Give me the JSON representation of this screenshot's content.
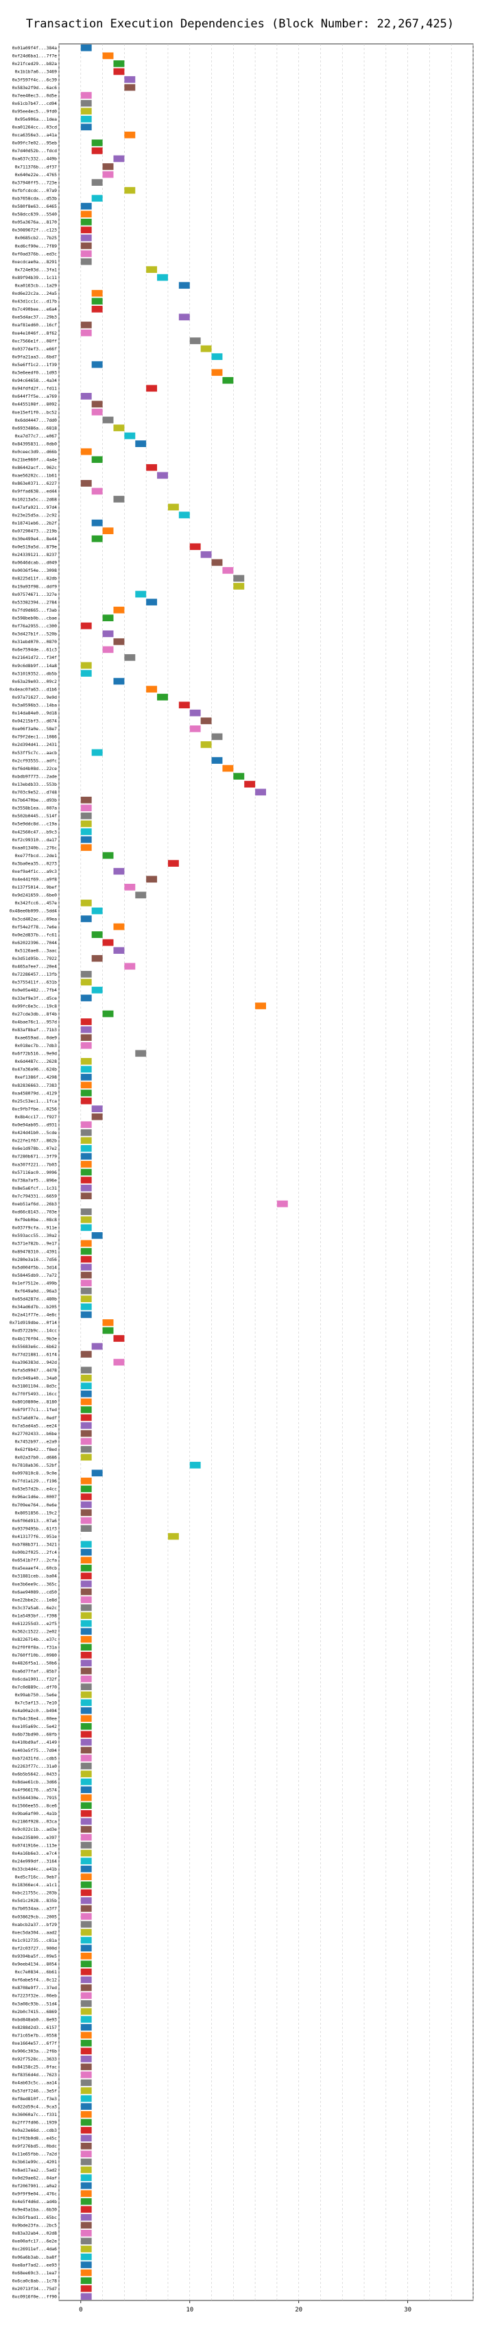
{
  "chart_data": {
    "type": "gantt",
    "title": "Transaction Execution Dependencies (Block Number: 22,267,425)",
    "xlabel": "",
    "ylabel": "",
    "xlim": [
      -2,
      36
    ],
    "x_ticks": [
      0,
      10,
      20,
      30
    ],
    "grid": true,
    "categories": [
      "0x01a09f4f...384a",
      "0xf24d6ba1...7f7e",
      "0x21fced29...b82a",
      "0x1b1b7a6...3469",
      "0x3f597f4c...6c39",
      "0x583e2f9d...6ac6",
      "0x7ee40ec3...0d5e",
      "0x61cb7b47...cd94",
      "0x95ee4ec5...9fd0",
      "0x95e906a...1dea",
      "0xa01264cc...03cd",
      "0xca6356e3...a41a",
      "0x09fc7e02...95eb",
      "0x7d40d52b...fdcd",
      "0xa637c332...449b",
      "0x711376b...df37",
      "0x640e22e...4765",
      "0x37940ff5...723e",
      "0xfbfcdcdc...07a9",
      "0xb7658cda...d53b",
      "0x580f8e63...6465",
      "0x58dcc639...5540",
      "0x05a3676a...8170",
      "0x3089672f...c123",
      "0x0685cb2...7b25",
      "0xd6cf90e...7f89",
      "0xf0ad376b...ed3c",
      "0xecdcae0a...8291",
      "0x724e03d...3fa1",
      "0x89f94b39...1c11",
      "0xa0163cb...1a29",
      "0xd6e22c2a...24a5",
      "0x43d1cc1c...d17b",
      "0x7c490bee...e6a4",
      "0xe5d4ac37...29b3",
      "0xaf81ed60...16cf",
      "0xe4e1046f...8f62",
      "0xc7566e1f...08ff",
      "0x0377def3...e66f",
      "0x9fa21aa3...6bd7",
      "0x5e6ff1c2...1f39",
      "0x3e6eedf0...1d93",
      "0x94c64658...4a34",
      "0x94fdfd2f...fd11",
      "0x644f7f5e...a769",
      "0x4455108f...8092",
      "0xe15ef1f0...bc52",
      "0x6dd4447...7dd0",
      "0x6933486a...6818",
      "0xa7d77c7...e067",
      "0x84395831...0db0",
      "0x0ceec3d9...d66b",
      "0x21be960f...4a4e",
      "0x86442acf...962c",
      "0xae56202c...1b61",
      "0x863e0371...6227",
      "0x9ffad638...ed44",
      "0x10213a5c...2d68",
      "0x47afa921...97d4",
      "0x23e25d5a...2c92",
      "0x18741eb6...2b2f",
      "0x07290473...219b",
      "0x30e499e4...8e44",
      "0x0e519a5d...879e",
      "0x24339121...8237",
      "0x0646dcab...d049",
      "0x0036f54e...3098",
      "0x8225d11f...82db",
      "0x19a93f98...ddf9",
      "0x07574671...327e",
      "0x53382394...2784",
      "0x7fd9d665...f3ab",
      "0x598beb0b...cbae",
      "0xf76a2955...c300",
      "0x3d427b1f...520b",
      "0x31ebd070...0870",
      "0x6e7594de...61c3",
      "0x21641d72...f34f",
      "0x9c6d8b9f...14a8",
      "0x31019352...db5b",
      "0x63a29e03...09c2",
      "0x4eac07a63...d1b6",
      "0x97a71627...9e9d",
      "0x3a0596b3...14ba",
      "0x14da84e0...9d18",
      "0x04215bf3...d674",
      "0xe06f3a0e...58e7",
      "0x79f2dec1...1086",
      "0x2d394d41...2431",
      "0x53ff5c7c...aacb",
      "0x2cf9355S...adfc",
      "0xf6d4b08d...22ce",
      "0xbdb97773...2ade",
      "0x13ebdb33...553b",
      "0x703c9e52...d748",
      "0x7b6470be...d93b",
      "0x3558b1ea...007a",
      "0x502b0445...514f",
      "0x5e9ddc8d...c19a",
      "0x42560c47...b9c3",
      "0xf2c99310...da17",
      "0xaa01340b...276c",
      "0xe77fbcd...2de1",
      "0x3ba0ea35...0273",
      "0xef9a4f1c...a9c3",
      "0x4e441f69...a9f8",
      "0x137f5014...9bef",
      "0x9d241659...6be0",
      "0x342fcc6...457e",
      "0x48ee0b099...5dd4",
      "0x3cd402ac...09ea",
      "0xf54e2f78...7e6e",
      "0x0e2d837b...fc61",
      "0x62022396...7044",
      "0x5126ae8...3aac",
      "0x3d51d95b...7922",
      "0x465a7ee7...20e4",
      "0x72286457...13fb",
      "0x3755411f...631b",
      "0x0e05e482...7fb4",
      "0x33ef9e3f...d5ce",
      "0x99fc6e3c...19c8",
      "0x27cde3db...8f4b",
      "0x4bae76c1...957d",
      "0x83af8baf...71b3",
      "0xae659ad...0de9",
      "0x018ec7b...7db3",
      "0x6f72b516...9e9d",
      "0x6d4487c...2628",
      "0x47a36a96...624b",
      "0xef1386f...4298",
      "0x82836663...7383",
      "0xa458079d...4129",
      "0x25c53ec1...1fca",
      "0xc9fb7fbe...0256",
      "0x8b4cc17...f927",
      "0x0e94ab05...d931",
      "0x424d41b0...5cde",
      "0x22fe1f67...862b",
      "0x6e1d978b...07e2",
      "0x7280b671...3f79",
      "0xa307f221...7b03",
      "0x57116ac0...9096",
      "0x738a7af5...896e",
      "0x8e5a6fcf...1c31",
      "0x7c794331...6659",
      "0xeb51af6d...26b3",
      "0xd66c8143...703e",
      "0xf9eb0be...08c8",
      "0x037f9cfa...911e",
      "0x593acc55...30a2",
      "0x371e782b...9e17",
      "0x89478310...4391",
      "0x280e3a16...7d56",
      "0x5d004f5b...3d14",
      "0x58445db9...7a72",
      "0x1ef7512e...499b",
      "0xf649a0d...96a3",
      "0x65d4287d...480b",
      "0x34ad6d7b...b205",
      "0x2a41f77e...4e8c",
      "0x71d919dbe...0f14",
      "0xd5722b9c...14cc",
      "0x4b176f04...9b3e",
      "0x55683e6c...6b62",
      "0x77d21881...61f4",
      "0xa396383d...942d",
      "0xfa5d9947...4478",
      "0x9c949a40...34a0",
      "0x31801104...8d3c",
      "0x7f0f5493...16cc",
      "0x8010800e...8180",
      "0x6f9f77c1...1fed",
      "0x57a6d07e...0edf",
      "0x7a5ad4a5...ee24",
      "0x27702433...b6be",
      "0x7452b97...e2a9",
      "0x62f8b42...f8ed",
      "0x02a37b0...d686",
      "0x7818ab36...52bf",
      "0x097810c8...9c0e",
      "0x7fd1a129...f196",
      "0x63e57d2b...e4cc",
      "0x96ac1d6e...0007",
      "0x709ee764...0e6e",
      "0x8051856...19c2",
      "0x6f06d913...07a6",
      "0x9379495b...61f3",
      "0x413177f6...951e",
      "0xb788b371...3421",
      "0x00b2f025...2fc4",
      "0x6541b7f7...2cfa",
      "0xa5eaaef4...60cb",
      "0x31881ceb...ba04",
      "0xe3b6ee9c...365c",
      "0x6ae94089...cd50",
      "0xe22bbe2c...1e8d",
      "0x3c37a5a8...6e2c",
      "0x1a5493bf...f398",
      "0x612255d3...e2f5",
      "0x362c1522...2e02",
      "0x8226714b...e37c",
      "0x2f0f0f8a...f31a",
      "0x760ff10b...0980",
      "0x4826f5a1...50b6",
      "0xa6d77faf...85b7",
      "0x6cda1901...f32f",
      "0x7c0d889c...df70",
      "0x99ab750...5e6e",
      "0x7c5af13...7e10",
      "0x4a90a2c0...b494",
      "0x7b4c36e4...00ee",
      "0xe105a69c...5e42",
      "0x6b73bd90...68fb",
      "0x410bd9af...4149",
      "0x403e5f75...7d94",
      "0xb72431fd...cdb5",
      "0x2263f77c...31a0",
      "0x6b5b5642...0433",
      "0x8dae61cb...3d66",
      "0x4f966176...a574",
      "0x5564430e...7915",
      "0x1566ee55...8ce6",
      "0x9ba6af00...4a1b",
      "0x2186f928...03ca",
      "0x9c022c1b...ad3e",
      "0xbe235800...e397",
      "0x0741916e...113e",
      "0x4a16b6e3...e7c4",
      "0x24e999df...3164",
      "0x33cb4d4c...e41b",
      "0xd5c716c...9eb7",
      "0x18366ec4...a1c1",
      "0xbc21755c...203b",
      "0x5d1c2028...835b",
      "0x7b0534aa...a3f7",
      "0x038629cb...2005",
      "0xabcb2a37...bf29",
      "0xec5da304...aad2",
      "0x1c912735...c81a",
      "0xf2c03727...900d",
      "0x9394ba5f...09e5",
      "0x9eeb4134...8054",
      "0xc7e0834...6b61",
      "0xf6abe5f4...0c12",
      "0x8708e9f7...37ed",
      "0x7223f32e...06eb",
      "0x3a08c93b...51d4",
      "0x2b0c7415...6869",
      "0xbd848ab0...8e93",
      "0x8288d2d3...6157",
      "0x71c65e7b...0558",
      "0xe1664e57...6f7f",
      "0x906c303a...2f6b",
      "0x92f7528c...3633",
      "0x84158c25...0fac",
      "0xf8356d4d...7623",
      "0x4ab63c5c...aa14",
      "0x57df7246...3e5f",
      "0xf8ed810f...f3e3",
      "0x022d59c4...9ca3",
      "0x36060a7c...f331",
      "0x2ff7fd06...1939",
      "0x0a23e66d...cdb3",
      "0x1f03b0d8...e45c",
      "0x9f276bd5...0bdc",
      "0x11e65fbb...7a2d",
      "0x3b61e99c...4201",
      "0x8ad17aa2...5ad2",
      "0x0d29ae62...04af",
      "0xf2067901...a0a2",
      "0x9f9f9e04...476c",
      "0x4e5f4d6d...ad4b",
      "0x9e45a1ba...6b30",
      "0x3b5fbad1...65bc",
      "0x9bde23fa...2bc5",
      "0x83a32ab4...02d8",
      "0xe00afc17...6e2e",
      "0xc26911ef...4da6",
      "0x06a6b3ab...ba8f",
      "0xe8af7ad2...ee93",
      "0x68ee69c3...1ea7",
      "0x6ca0c8ab...1c78",
      "0x20713f34...75d7",
      "0xc0916f0e...ff90"
    ],
    "start": [
      0,
      2,
      3,
      3,
      4,
      4,
      0,
      0,
      0,
      0,
      0,
      4,
      1,
      1,
      3,
      2,
      2,
      1,
      4,
      1,
      0,
      0,
      0,
      0,
      0,
      0,
      0,
      0,
      6,
      7,
      9,
      1,
      1,
      1,
      9,
      0,
      0,
      10,
      11,
      12,
      1,
      12,
      13,
      6,
      0,
      1,
      1,
      2,
      3,
      4,
      5,
      0,
      1,
      6,
      7,
      0,
      1,
      3,
      8,
      9,
      1,
      2,
      1,
      10,
      11,
      12,
      13,
      14,
      14,
      5,
      6,
      3,
      2,
      0,
      2,
      3,
      2,
      4,
      0,
      0,
      3,
      6,
      7,
      9,
      10,
      11,
      10,
      12,
      11,
      1,
      12,
      13,
      14,
      15,
      16,
      0,
      0,
      0,
      0,
      0,
      0,
      0,
      2,
      8,
      3,
      6,
      4,
      5,
      0,
      1,
      0,
      3,
      1,
      2,
      3,
      1,
      4,
      0,
      0,
      1,
      0,
      16,
      2,
      0,
      0,
      0,
      0,
      5,
      0,
      0,
      0,
      0,
      0,
      0,
      1,
      1,
      0,
      0,
      0,
      0,
      0,
      0,
      0,
      0,
      0,
      0,
      18,
      0,
      0,
      0,
      1,
      0,
      0,
      0,
      0,
      0,
      0,
      0,
      0,
      0,
      0,
      2,
      2,
      3,
      1,
      0,
      3,
      0,
      0,
      0,
      0,
      0,
      0,
      0,
      0,
      0,
      0,
      0,
      0,
      10,
      1,
      0,
      0,
      0,
      0,
      0,
      0,
      0,
      8,
      0,
      0,
      0,
      0,
      0,
      0,
      0,
      0,
      0,
      0,
      0,
      0,
      0,
      0,
      0,
      0,
      0,
      0,
      0,
      0,
      0,
      0,
      0,
      0,
      0,
      0,
      0,
      0,
      0,
      0,
      0,
      0,
      0,
      0,
      0,
      0,
      0,
      0,
      0,
      0,
      0,
      0,
      0,
      0,
      0,
      0,
      0,
      0,
      0,
      0,
      0,
      0,
      0,
      0,
      0,
      0,
      0,
      0,
      0,
      0,
      0,
      0,
      0,
      0,
      0,
      0,
      0,
      0,
      0,
      0,
      0,
      0,
      0,
      0,
      0,
      0,
      0,
      0,
      0,
      0,
      0,
      0,
      0,
      0,
      0,
      0,
      0,
      0,
      0,
      0,
      0,
      0,
      0,
      0,
      0,
      0,
      0,
      0,
      0,
      0,
      0,
      0,
      0,
      0,
      0,
      0,
      0,
      0,
      0,
      0,
      0,
      0,
      0,
      0,
      0,
      0,
      0,
      0,
      0,
      0,
      0
    ],
    "colors": [
      "#1f77b4",
      "#ff7f0e",
      "#2ca02c",
      "#d62728",
      "#9467bd",
      "#8c564b",
      "#e377c2",
      "#7f7f7f",
      "#bcbd22",
      "#17becf"
    ],
    "bar_width": 1
  }
}
